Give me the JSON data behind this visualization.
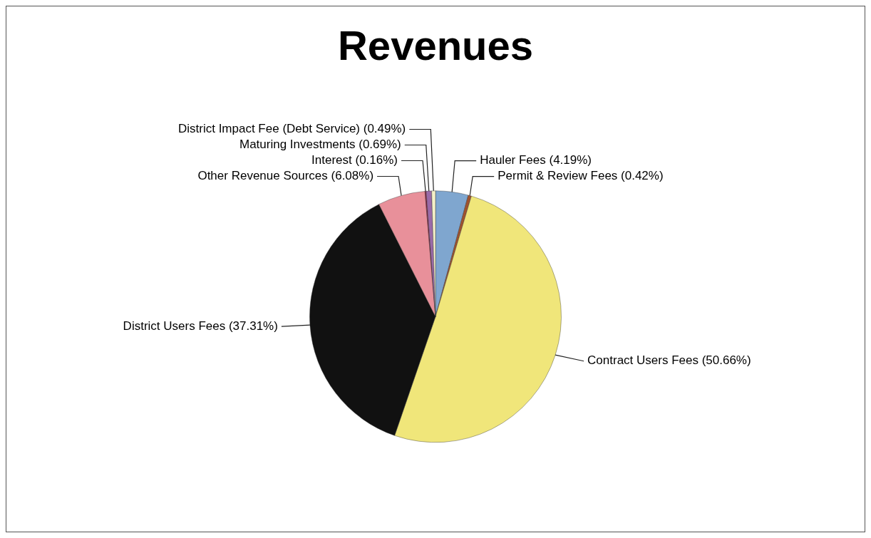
{
  "chart_data": {
    "type": "pie",
    "title": "Revenues",
    "categories": [
      "Hauler Fees",
      "Permit & Review Fees",
      "Contract Users Fees",
      "District Users Fees",
      "Other Revenue Sources",
      "Interest",
      "Maturing Investments",
      "District Impact Fee (Debt Service)"
    ],
    "values": [
      4.19,
      0.42,
      50.66,
      37.31,
      6.08,
      0.16,
      0.69,
      0.49
    ],
    "value_labels": [
      "(4.19%)",
      "(0.42%)",
      "(50.66%)",
      "(37.31%)",
      "(6.08%)",
      "(0.16%)",
      "(0.69%)",
      "(0.49%)"
    ],
    "colors": [
      "#7fa6cf",
      "#a0522d",
      "#f0e67a",
      "#111111",
      "#e8909a",
      "#8b2040",
      "#9a6aa8",
      "#f4f0c8"
    ],
    "legend": false
  }
}
